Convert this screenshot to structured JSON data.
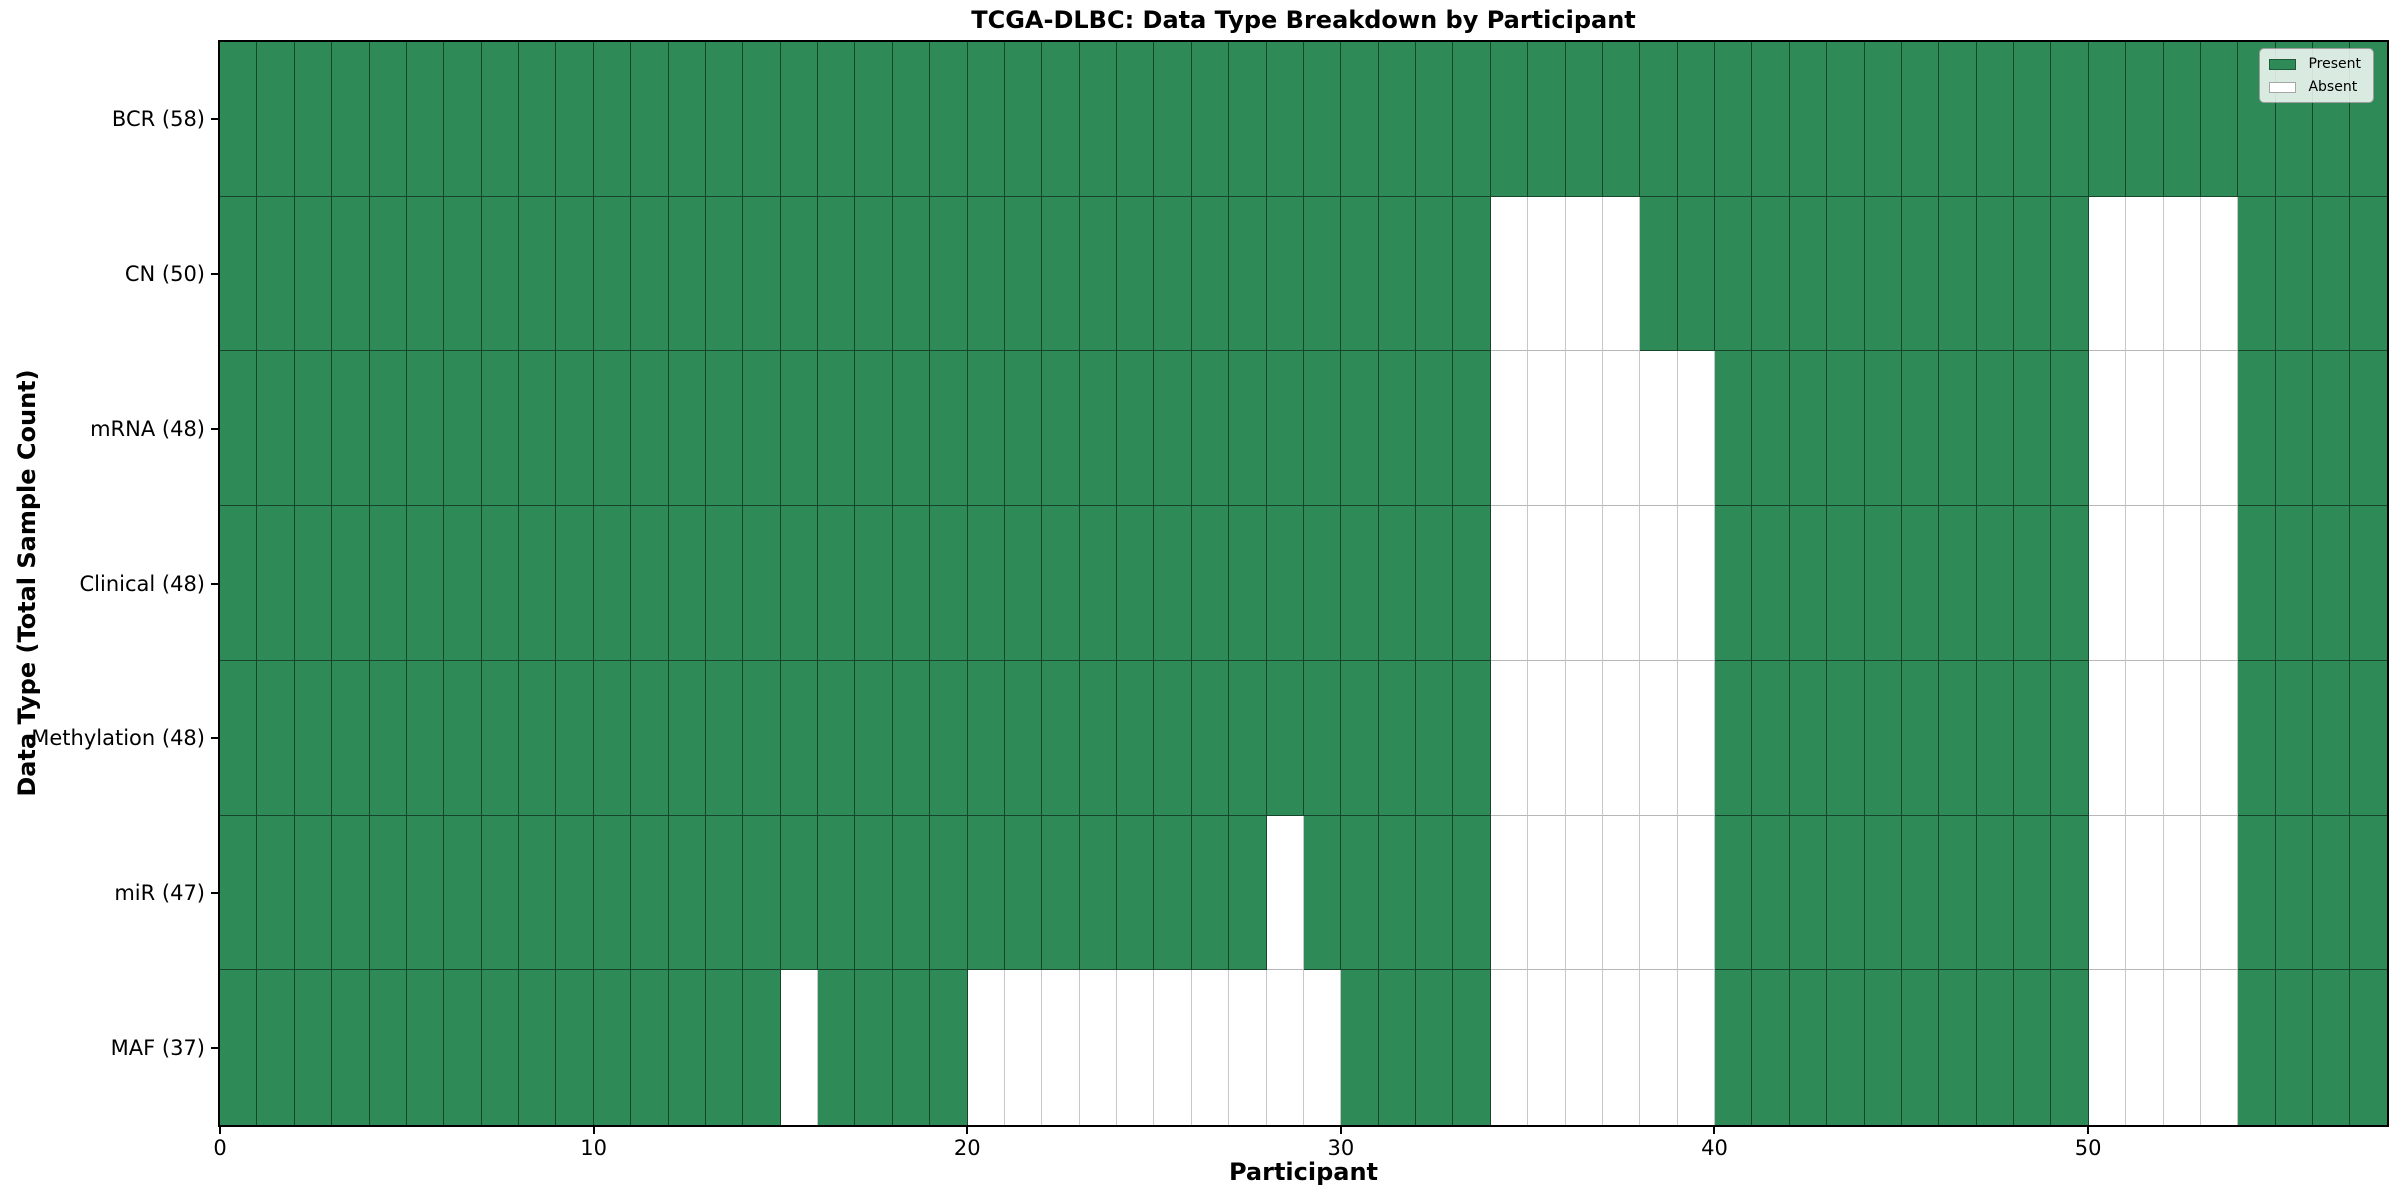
{
  "title": "TCGA-DLBC: Data Type Breakdown by Participant",
  "xlabel": "Participant",
  "ylabel": "Data Type (Total Sample Count)",
  "legend": {
    "present_label": "Present",
    "absent_label": "Absent"
  },
  "colors": {
    "present": "#2E8B57",
    "absent": "#FFFFFF"
  },
  "chart_data": {
    "type": "heatmap",
    "title": "TCGA-DLBC: Data Type Breakdown by Participant",
    "xlabel": "Participant",
    "ylabel": "Data Type (Total Sample Count)",
    "legend_entries": [
      "Present",
      "Absent"
    ],
    "legend_position": "upper right",
    "n_participants": 58,
    "x_ticks": [
      0,
      10,
      20,
      30,
      40,
      50
    ],
    "x_range": [
      0,
      58
    ],
    "cell_states": "1=present, 0=absent, indexed by participant 0-57",
    "rows": [
      {
        "label": "BCR (58)",
        "data_type": "BCR",
        "total_count": 58,
        "absent_participants": []
      },
      {
        "label": "CN (50)",
        "data_type": "CN",
        "total_count": 50,
        "absent_participants": [
          34,
          35,
          36,
          37,
          50,
          51,
          52,
          53
        ]
      },
      {
        "label": "mRNA (48)",
        "data_type": "mRNA",
        "total_count": 48,
        "absent_participants": [
          34,
          35,
          36,
          37,
          38,
          39,
          50,
          51,
          52,
          53
        ]
      },
      {
        "label": "Clinical (48)",
        "data_type": "Clinical",
        "total_count": 48,
        "absent_participants": [
          34,
          35,
          36,
          37,
          38,
          39,
          50,
          51,
          52,
          53
        ]
      },
      {
        "label": "Methylation (48)",
        "data_type": "Methylation",
        "total_count": 48,
        "absent_participants": [
          34,
          35,
          36,
          37,
          38,
          39,
          50,
          51,
          52,
          53
        ]
      },
      {
        "label": "miR (47)",
        "data_type": "miR",
        "total_count": 47,
        "absent_participants": [
          28,
          34,
          35,
          36,
          37,
          38,
          39,
          50,
          51,
          52,
          53
        ]
      },
      {
        "label": "MAF (37)",
        "data_type": "MAF",
        "total_count": 37,
        "absent_participants": [
          15,
          20,
          21,
          22,
          23,
          24,
          25,
          26,
          27,
          28,
          29,
          34,
          35,
          36,
          37,
          38,
          39,
          50,
          51,
          52,
          53
        ]
      }
    ]
  }
}
